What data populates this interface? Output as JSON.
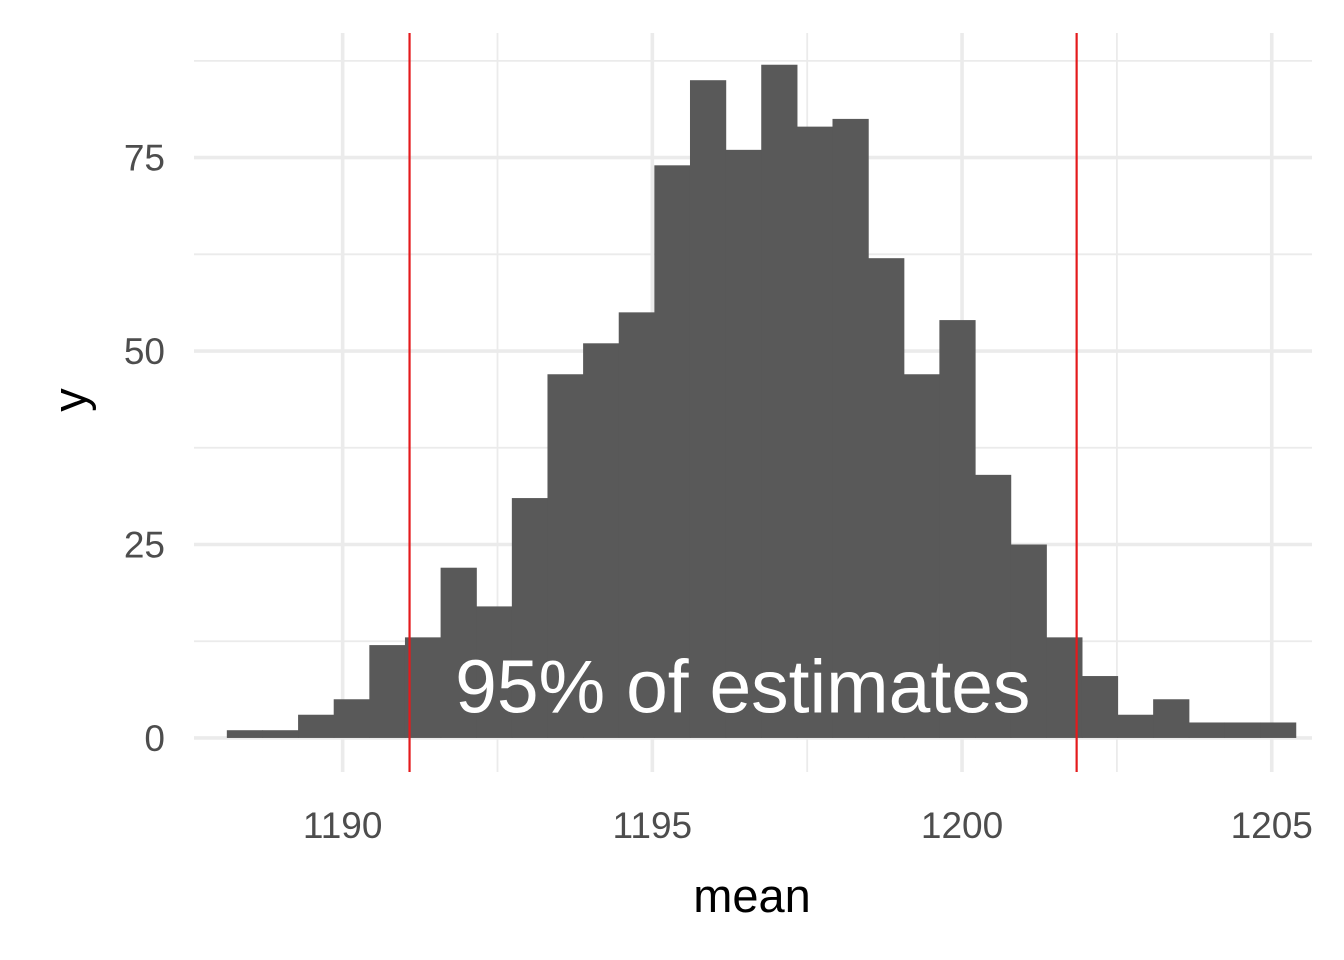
{
  "chart_data": {
    "type": "bar",
    "subtype": "histogram",
    "xlabel": "mean",
    "ylabel": "y",
    "xlim": [
      1187.6,
      1205.65
    ],
    "ylim": [
      -4.4,
      91.1
    ],
    "x_ticks": [
      1190,
      1195,
      1200,
      1205
    ],
    "x_tick_labels": [
      "1190",
      "1195",
      "1200",
      "1205"
    ],
    "y_ticks": [
      0,
      25,
      50,
      75
    ],
    "y_tick_labels": [
      "0",
      "25",
      "50",
      "75"
    ],
    "bin_start": 1188.13,
    "bin_width": 0.5752,
    "counts": [
      1,
      1,
      3,
      5,
      12,
      13,
      22,
      17,
      31,
      47,
      51,
      55,
      74,
      85,
      76,
      87,
      79,
      80,
      62,
      47,
      54,
      34,
      25,
      13,
      8,
      3,
      5,
      2,
      2,
      2
    ],
    "bar_color": "#595959",
    "vlines": [
      {
        "x": 1191.08,
        "color": "#e41a1c"
      },
      {
        "x": 1201.85,
        "color": "#e41a1c"
      }
    ],
    "annotation": {
      "text": "95% of estimates",
      "x": 1196.46,
      "y": 3.3,
      "color": "#ffffff"
    },
    "grid": true,
    "grid_color": "#ebebeb",
    "legend": "none",
    "theme": "minimal"
  }
}
